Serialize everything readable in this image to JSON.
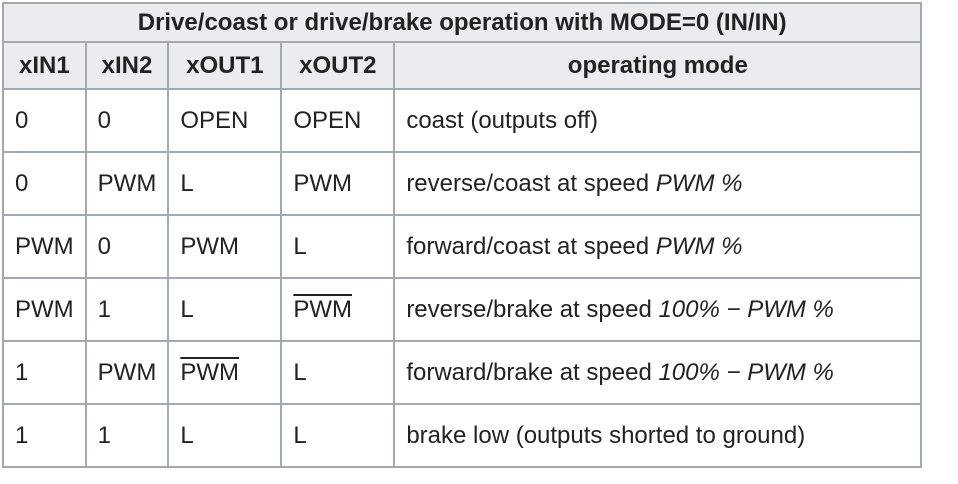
{
  "table": {
    "caption": "Drive/coast or drive/brake operation with MODE=0 (IN/IN)",
    "headers": [
      "xIN1",
      "xIN2",
      "xOUT1",
      "xOUT2",
      "operating mode"
    ],
    "rows": [
      {
        "in1": "0",
        "in2": "0",
        "out1": "OPEN",
        "out2": "OPEN",
        "mode_text": "coast (outputs off)",
        "mode_em": ""
      },
      {
        "in1": "0",
        "in2": "PWM",
        "out1": "L",
        "out2": "PWM",
        "mode_text": "reverse/coast at speed ",
        "mode_em": "PWM %"
      },
      {
        "in1": "PWM",
        "in2": "0",
        "out1": "PWM",
        "out2": "L",
        "mode_text": "forward/coast at speed ",
        "mode_em": "PWM %"
      },
      {
        "in1": "PWM",
        "in2": "1",
        "out1": "L",
        "out2": "PWM",
        "out2_overline": true,
        "mode_text": "reverse/brake at speed ",
        "mode_em": "100% − PWM %"
      },
      {
        "in1": "1",
        "in2": "PWM",
        "out1": "PWM",
        "out1_overline": true,
        "out2": "L",
        "mode_text": "forward/brake at speed ",
        "mode_em": "100% − PWM %"
      },
      {
        "in1": "1",
        "in2": "1",
        "out1": "L",
        "out2": "L",
        "mode_text": "brake low (outputs shorted to ground)",
        "mode_em": ""
      }
    ]
  }
}
